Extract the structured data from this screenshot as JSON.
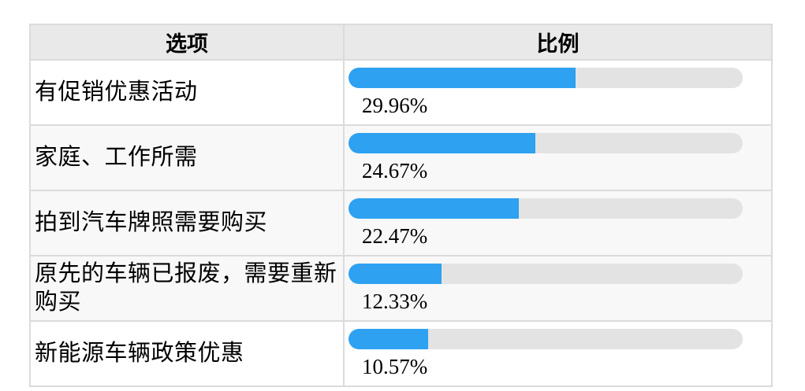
{
  "table": {
    "headers": [
      {
        "label": "选项"
      },
      {
        "label": "比例"
      }
    ],
    "rows": [
      {
        "option": "有促销优惠活动",
        "percent": "29.96%",
        "value": 29.96
      },
      {
        "option": "家庭、工作所需",
        "percent": "24.67%",
        "value": 24.67
      },
      {
        "option": "拍到汽车牌照需要购买",
        "percent": "22.47%",
        "value": 22.47
      },
      {
        "option": "原先的车辆已报废，需要重新购买",
        "percent": "12.33%",
        "value": 12.33
      },
      {
        "option": "新能源车辆政策优惠",
        "percent": "10.57%",
        "value": 10.57
      }
    ]
  },
  "chart_data": {
    "type": "bar",
    "categories": [
      "有促销优惠活动",
      "家庭、工作所需",
      "拍到汽车牌照需要购买",
      "原先的车辆已报废，需要重新购买",
      "新能源车辆政策优惠"
    ],
    "values": [
      29.96,
      24.67,
      22.47,
      12.33,
      10.57
    ],
    "value_labels": [
      "29.96%",
      "24.67%",
      "22.47%",
      "12.33%",
      "10.57%"
    ],
    "title": "",
    "xlabel": "选项",
    "ylabel": "比例",
    "orientation": "horizontal",
    "bar_fill_scale_percent_per_unit": 1.92,
    "legend": "none",
    "grid": false
  },
  "colors": {
    "bar_fill": "#2ea1f0",
    "bar_track": "#e3e3e3",
    "header_bg": "#e9e9e9",
    "border": "#dbdbdb",
    "stripe_bg": "#f8f8f8",
    "text": "#000000"
  }
}
